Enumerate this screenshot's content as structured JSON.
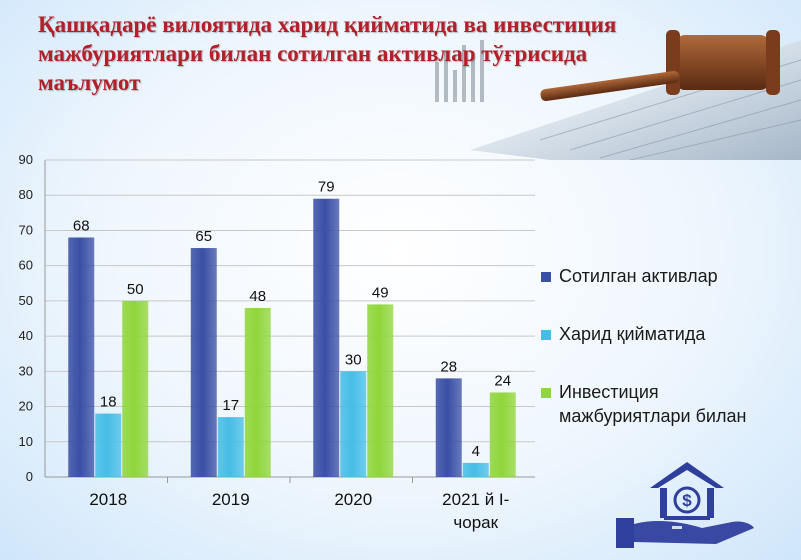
{
  "title": "Қашқадарё вилоятида харид қийматида ва инвестиция мажбуриятлари билан сотилган активлар тўғрисида маълумот",
  "colors": {
    "title": "#b3202a",
    "series1": "#3a4fa6",
    "series2": "#46bde6",
    "series3": "#8fd63a"
  },
  "chart_data": {
    "type": "bar",
    "categories": [
      [
        "2018"
      ],
      [
        "2019"
      ],
      [
        "2020"
      ],
      [
        "2021 й I-",
        "чорак"
      ]
    ],
    "series": [
      {
        "name": "Сотилган активлар",
        "values": [
          68,
          65,
          79,
          28
        ]
      },
      {
        "name": "Харид қийматида",
        "values": [
          18,
          17,
          30,
          4
        ]
      },
      {
        "name": "Инвестиция мажбуриятлари билан",
        "name_lines": [
          "Инвестиция",
          "мажбуриятлари билан"
        ],
        "values": [
          50,
          48,
          49,
          24
        ]
      }
    ],
    "ylim": [
      0,
      90
    ],
    "yticks": [
      0,
      10,
      20,
      30,
      40,
      50,
      60,
      70,
      80,
      90
    ],
    "grid": true,
    "legend": "right",
    "xlabel": "",
    "ylabel": ""
  }
}
